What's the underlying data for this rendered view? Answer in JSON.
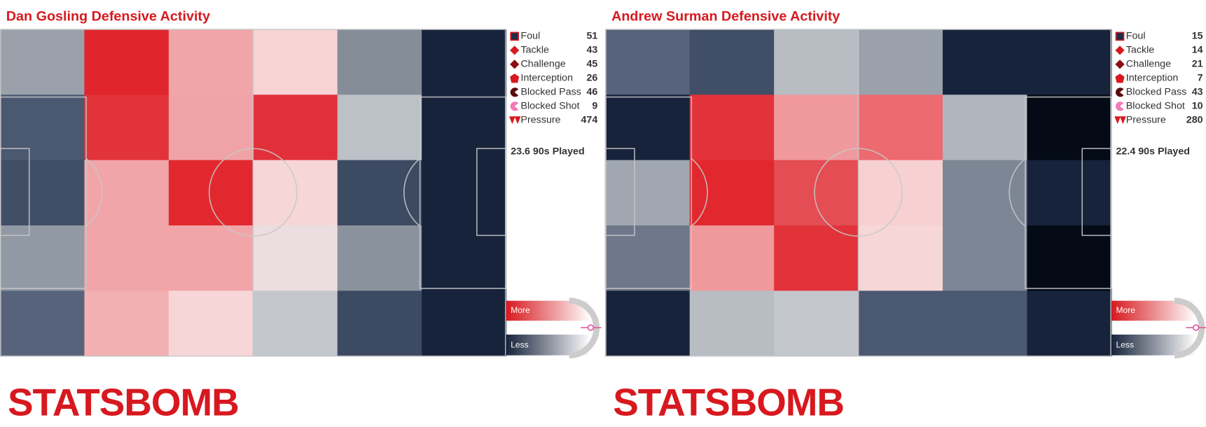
{
  "chart_data": [
    {
      "type": "heatmap",
      "title": "Dan Gosling Defensive Activity",
      "legend": [
        {
          "name": "Foul",
          "color": "#1f2d4a",
          "value": 51
        },
        {
          "name": "Tackle",
          "color": "#d7191f",
          "value": 43
        },
        {
          "name": "Challenge",
          "color": "#8b0d13",
          "value": 45
        },
        {
          "name": "Interception",
          "color": "#d7191f",
          "value": 26
        },
        {
          "name": "Blocked Pass",
          "color": "#5a0a0e",
          "value": 46
        },
        {
          "name": "Blocked Shot",
          "color": "#f07ab8",
          "value": 9
        },
        {
          "name": "Pressure",
          "color": "#d7191f",
          "value": 474
        }
      ],
      "played": "23.6 90s Played",
      "zone_colors": [
        [
          "#9aa1ab",
          "#e0252e",
          "#f2a5a8",
          "#f7d3d4",
          "#858d99",
          "#16233b"
        ],
        [
          "#4a5870",
          "#e2333a",
          "#f0a3a6",
          "#e1303a",
          "#bcc0c7",
          "#16233b"
        ],
        [
          "#404e66",
          "#f2a5a8",
          "#e1282f",
          "#f7d6d7",
          "#3c4a62",
          "#16233b"
        ],
        [
          "#9199a4",
          "#f2a5a8",
          "#f2a5a8",
          "#ebdde0",
          "#8a929d",
          "#16233b"
        ],
        [
          "#56637a",
          "#f3b0b2",
          "#f7d6d7",
          "#c3c7cd",
          "#3c4a62",
          "#16233b"
        ]
      ]
    },
    {
      "type": "heatmap",
      "title": "Andrew Surman Defensive Activity",
      "legend": [
        {
          "name": "Foul",
          "color": "#1f2d4a",
          "value": 15
        },
        {
          "name": "Tackle",
          "color": "#d7191f",
          "value": 14
        },
        {
          "name": "Challenge",
          "color": "#8b0d13",
          "value": 21
        },
        {
          "name": "Interception",
          "color": "#d7191f",
          "value": 7
        },
        {
          "name": "Blocked Pass",
          "color": "#5a0a0e",
          "value": 43
        },
        {
          "name": "Blocked Shot",
          "color": "#f07ab8",
          "value": 10
        },
        {
          "name": "Pressure",
          "color": "#d7191f",
          "value": 280
        }
      ],
      "played": "22.4 90s Played",
      "zone_colors": [
        [
          "#56637a",
          "#404e66",
          "#b8bdc4",
          "#9aa1ab",
          "#16233b",
          "#16233b"
        ],
        [
          "#16233b",
          "#e2333a",
          "#f0999c",
          "#ec6a70",
          "#b0b6be",
          "#050b16"
        ],
        [
          "#a0a7b0",
          "#e1282f",
          "#e34d53",
          "#f7d0d2",
          "#7d8694",
          "#16233b"
        ],
        [
          "#6e788a",
          "#f0999c",
          "#e2333a",
          "#f7d6d7",
          "#7d8694",
          "#050b16"
        ],
        [
          "#16233b",
          "#b8bdc4",
          "#c3c7cd",
          "#4a5870",
          "#4a5870",
          "#16233b"
        ]
      ]
    }
  ],
  "scale": {
    "more": "More",
    "less": "Less"
  },
  "logo": "STATSBOMB"
}
